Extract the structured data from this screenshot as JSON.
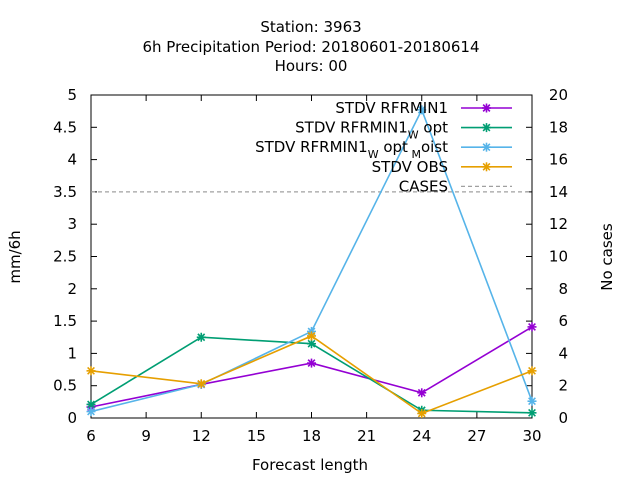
{
  "chart_data": {
    "type": "line",
    "title": {
      "line1": "Station:      3963",
      "line2": "6h Precipitation   Period: 20180601-20180614",
      "line3": "Hours:  00"
    },
    "xlabel": "Forecast length",
    "ylabel": "mm/6h",
    "y2label": "No cases",
    "xlim": [
      6,
      30
    ],
    "ylim": [
      0,
      5
    ],
    "y2lim": [
      0,
      20
    ],
    "xticks": [
      "6",
      "9",
      "12",
      "15",
      "18",
      "21",
      "24",
      "27",
      "30"
    ],
    "yticks": [
      "0",
      "0.5",
      "1",
      "1.5",
      "2",
      "2.5",
      "3",
      "3.5",
      "4",
      "4.5",
      "5"
    ],
    "y2ticks": [
      "0",
      "2",
      "4",
      "6",
      "8",
      "10",
      "12",
      "14",
      "16",
      "18",
      "20"
    ],
    "grid": false,
    "legend_position": "top-right",
    "x": [
      6,
      12,
      18,
      24,
      30
    ],
    "series": [
      {
        "name": "STDV RFRMIN1",
        "color": "#9400d3",
        "values": [
          0.17,
          0.52,
          0.85,
          0.39,
          1.41
        ]
      },
      {
        "name_parts": [
          "STDV RFRMIN1",
          "W",
          "opt"
        ],
        "color": "#009e73",
        "values": [
          0.21,
          1.25,
          1.15,
          0.12,
          0.08
        ]
      },
      {
        "name_parts": [
          "STDV RFRMIN1",
          "W",
          "opt",
          "M",
          "oist"
        ],
        "color": "#56b4e9",
        "values": [
          0.1,
          0.52,
          1.34,
          4.77,
          0.26
        ]
      },
      {
        "name": "STDV OBS",
        "color": "#e69f00",
        "values": [
          0.73,
          0.53,
          1.27,
          0.07,
          0.73
        ]
      }
    ],
    "cases": {
      "name": "CASES",
      "color": "#a0a0a0",
      "value": 14
    }
  }
}
